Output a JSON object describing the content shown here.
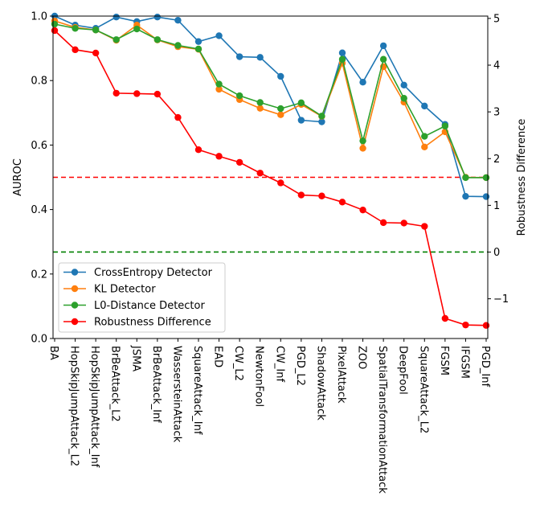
{
  "chart_data": {
    "type": "line",
    "categories": [
      "BA",
      "HopSkipJumpAttack_L2",
      "HopSkipJumpAttack_Inf",
      "BrBeAttack_L2",
      "JSMA",
      "BrBeAttack_Inf",
      "WassersteinAttack",
      "SquareAttack_Inf",
      "EAD",
      "CW_L2",
      "NewtonFool",
      "CW_Inf",
      "PGD_L2",
      "ShadowAttack",
      "PixelAttack",
      "ZOO",
      "SpatialTransformationAttack",
      "DeepFool",
      "SquareAttack_L2",
      "FGSM",
      "IFGSM",
      "PGD_Inf"
    ],
    "ylabel": "AUROC",
    "y2label": "Robustness Difference",
    "ylim": [
      0.0,
      1.0
    ],
    "y2lim": [
      -1.85,
      5.05
    ],
    "yticks": [
      "0.0",
      "0.2",
      "0.4",
      "0.6",
      "0.8",
      "1.0"
    ],
    "y2ticks": [
      "−1",
      "0",
      "1",
      "2",
      "3",
      "4",
      "5"
    ],
    "grid": false,
    "legend_position": "lower-left",
    "series": [
      {
        "name": "CrossEntropy Detector",
        "axis": "left",
        "color": "#1f77b4",
        "values": [
          1.0,
          0.972,
          0.962,
          0.997,
          0.983,
          0.997,
          0.987,
          0.921,
          0.939,
          0.874,
          0.872,
          0.813,
          0.677,
          0.672,
          0.886,
          0.795,
          0.908,
          0.786,
          0.721,
          0.664,
          0.441,
          0.44
        ]
      },
      {
        "name": "KL Detector",
        "axis": "left",
        "color": "#ff7f0e",
        "values": [
          0.985,
          0.965,
          0.957,
          0.925,
          0.972,
          0.926,
          0.905,
          0.897,
          0.773,
          0.741,
          0.714,
          0.694,
          0.726,
          0.689,
          0.854,
          0.59,
          0.843,
          0.733,
          0.594,
          0.641,
          0.5,
          0.499
        ]
      },
      {
        "name": "L0-Distance Detector",
        "axis": "left",
        "color": "#2ca02c",
        "values": [
          0.975,
          0.962,
          0.957,
          0.927,
          0.96,
          0.927,
          0.909,
          0.898,
          0.789,
          0.753,
          0.732,
          0.713,
          0.731,
          0.69,
          0.866,
          0.613,
          0.866,
          0.745,
          0.627,
          0.659,
          0.499,
          0.499
        ]
      },
      {
        "name": "Robustness Difference",
        "axis": "right",
        "color": "#ff0000",
        "values": [
          4.74,
          4.33,
          4.26,
          3.4,
          3.39,
          3.38,
          2.88,
          2.19,
          2.05,
          1.92,
          1.69,
          1.48,
          1.22,
          1.2,
          1.07,
          0.9,
          0.63,
          0.62,
          0.55,
          -1.42,
          -1.56,
          -1.57
        ]
      }
    ],
    "reference_lines": [
      {
        "axis": "right",
        "value": 1.6,
        "color": "#ff0000",
        "style": "dashed"
      },
      {
        "axis": "right",
        "value": 0.0,
        "color": "#008000",
        "style": "dashed"
      }
    ]
  }
}
